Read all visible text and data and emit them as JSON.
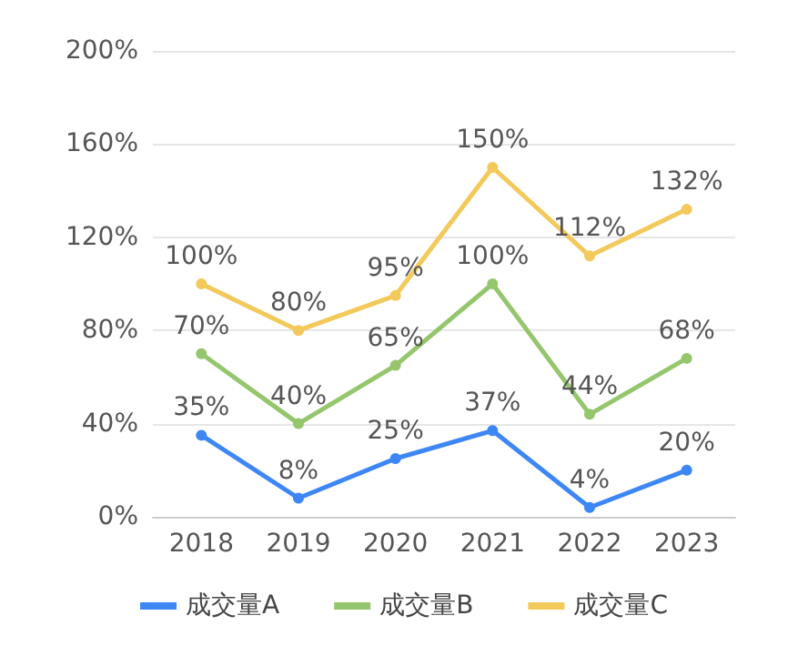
{
  "chart_data": {
    "type": "line",
    "categories": [
      "2018",
      "2019",
      "2020",
      "2021",
      "2022",
      "2023"
    ],
    "series": [
      {
        "name": "成交量A",
        "color": "#3d86f5",
        "values": [
          35,
          8,
          25,
          37,
          4,
          20
        ],
        "value_labels": [
          "35%",
          "8%",
          "25%",
          "37%",
          "4%",
          "20%"
        ]
      },
      {
        "name": "成交量B",
        "color": "#95c66d",
        "values": [
          70,
          40,
          65,
          100,
          44,
          68
        ],
        "value_labels": [
          "70%",
          "40%",
          "65%",
          "100%",
          "44%",
          "68%"
        ]
      },
      {
        "name": "成交量C",
        "color": "#f3c95c",
        "values": [
          100,
          80,
          95,
          150,
          112,
          132
        ],
        "value_labels": [
          "100%",
          "80%",
          "95%",
          "150%",
          "112%",
          "132%"
        ]
      }
    ],
    "ylim": [
      0,
      200
    ],
    "yticks": [
      {
        "value": 0,
        "label": "0%"
      },
      {
        "value": 40,
        "label": "40%"
      },
      {
        "value": 80,
        "label": "80%"
      },
      {
        "value": 120,
        "label": "120%"
      },
      {
        "value": 160,
        "label": "160%"
      },
      {
        "value": 200,
        "label": "200%"
      }
    ],
    "grid": "y",
    "legend": "bottom",
    "marker": "circle",
    "line_style": "solid"
  }
}
